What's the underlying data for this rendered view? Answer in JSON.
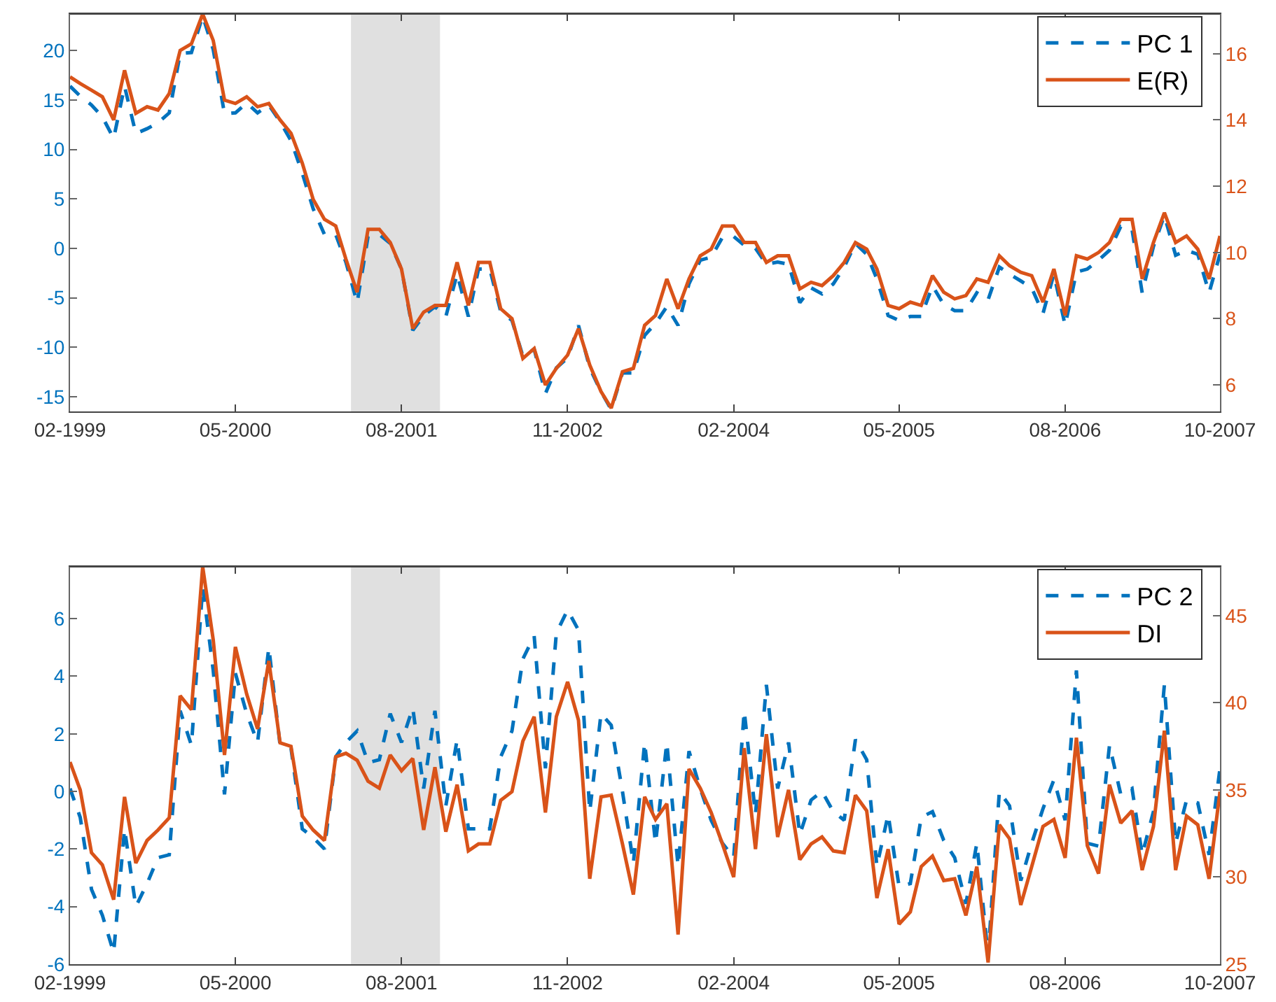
{
  "chart_data": [
    {
      "type": "line",
      "x": [
        "1999-02",
        "1999-03",
        "1999-04",
        "1999-05",
        "1999-06",
        "1999-07",
        "1999-08",
        "1999-09",
        "1999-10",
        "1999-11",
        "1999-12",
        "2000-01",
        "2000-02",
        "2000-03",
        "2000-04",
        "2000-05",
        "2000-06",
        "2000-07",
        "2000-08",
        "2000-09",
        "2000-10",
        "2000-11",
        "2000-12",
        "2001-01",
        "2001-02",
        "2001-03",
        "2001-04",
        "2001-05",
        "2001-06",
        "2001-07",
        "2001-08",
        "2001-09",
        "2001-10",
        "2001-11",
        "2001-12",
        "2002-01",
        "2002-02",
        "2002-03",
        "2002-04",
        "2002-05",
        "2002-06",
        "2002-07",
        "2002-08",
        "2002-09",
        "2002-10",
        "2002-11",
        "2002-12",
        "2003-01",
        "2003-02",
        "2003-03",
        "2003-04",
        "2003-05",
        "2003-06",
        "2003-07",
        "2003-08",
        "2003-09",
        "2003-10",
        "2003-11",
        "2003-12",
        "2004-01",
        "2004-02",
        "2004-03",
        "2004-04",
        "2004-05",
        "2004-06",
        "2004-07",
        "2004-08",
        "2004-09",
        "2004-10",
        "2004-11",
        "2004-12",
        "2005-01",
        "2005-02",
        "2005-03",
        "2005-04",
        "2005-05",
        "2005-06",
        "2005-07",
        "2005-08",
        "2005-09",
        "2005-10",
        "2005-11",
        "2005-12",
        "2006-01",
        "2006-02",
        "2006-03",
        "2006-04",
        "2006-05",
        "2006-06",
        "2006-07",
        "2006-08",
        "2006-09",
        "2006-10",
        "2006-11",
        "2006-12",
        "2007-01",
        "2007-02",
        "2007-03",
        "2007-04",
        "2007-05",
        "2007-06",
        "2007-07",
        "2007-08",
        "2007-09",
        "2007-10"
      ],
      "series": [
        {
          "name": "PC 1",
          "color": "#0072bd",
          "line_style": "dashed",
          "values": [
            16.4,
            15.4,
            14.5,
            13.3,
            11.1,
            16.4,
            11.6,
            12.1,
            12.7,
            13.7,
            19.7,
            19.8,
            23.5,
            20.1,
            13.6,
            13.7,
            14.7,
            13.7,
            14.5,
            12.8,
            10.9,
            7.6,
            4.0,
            1.4,
            1.4,
            -1.4,
            -5.5,
            1.2,
            1.4,
            0.5,
            -2.1,
            -8.3,
            -6.8,
            -5.9,
            -6.9,
            -2.6,
            -6.9,
            -2.1,
            -2.1,
            -6.4,
            -7.3,
            -10.9,
            -10.2,
            -14.7,
            -12.1,
            -11.1,
            -7.8,
            -12.1,
            -14.5,
            -16.3,
            -12.6,
            -12.6,
            -8.8,
            -7.6,
            -5.9,
            -7.8,
            -3.6,
            -1.2,
            -0.9,
            1.1,
            1.2,
            0.3,
            0.0,
            -1.6,
            -1.4,
            -1.6,
            -5.5,
            -4.0,
            -4.6,
            -3.6,
            -1.9,
            0.5,
            -0.6,
            -3.1,
            -6.8,
            -7.3,
            -6.9,
            -6.9,
            -3.8,
            -5.7,
            -6.3,
            -6.3,
            -4.5,
            -5.2,
            -1.9,
            -2.6,
            -3.3,
            -4.0,
            -6.6,
            -2.6,
            -7.8,
            -2.4,
            -2.1,
            -1.2,
            -0.2,
            2.2,
            1.9,
            -4.5,
            0.2,
            3.3,
            -0.7,
            -0.2,
            -0.6,
            -4.5,
            -0.6
          ]
        },
        {
          "name": "E(R)",
          "color": "#d95319",
          "axis": "y2",
          "values": [
            15.3,
            15.1,
            14.9,
            14.7,
            14.0,
            15.5,
            14.2,
            14.4,
            14.3,
            14.8,
            16.1,
            16.3,
            17.2,
            16.4,
            14.6,
            14.5,
            14.7,
            14.4,
            14.5,
            14.0,
            13.6,
            12.7,
            11.6,
            11.0,
            10.8,
            9.8,
            8.8,
            10.7,
            10.7,
            10.3,
            9.5,
            7.7,
            8.2,
            8.4,
            8.4,
            9.7,
            8.4,
            9.7,
            9.7,
            8.3,
            8.0,
            6.8,
            7.1,
            6.0,
            6.5,
            6.9,
            7.7,
            6.6,
            5.8,
            5.3,
            6.4,
            6.5,
            7.8,
            8.1,
            9.2,
            8.3,
            9.2,
            9.9,
            10.1,
            10.8,
            10.8,
            10.3,
            10.3,
            9.7,
            9.9,
            9.9,
            8.9,
            9.1,
            9.0,
            9.3,
            9.7,
            10.3,
            10.1,
            9.5,
            8.4,
            8.3,
            8.5,
            8.4,
            9.3,
            8.8,
            8.6,
            8.7,
            9.2,
            9.1,
            9.9,
            9.6,
            9.4,
            9.3,
            8.5,
            9.5,
            8.1,
            9.9,
            9.8,
            10.0,
            10.3,
            11.0,
            11.0,
            9.2,
            10.3,
            11.2,
            10.3,
            10.5,
            10.1,
            9.2,
            10.5
          ]
        }
      ],
      "xlim": [
        "1999-02",
        "2007-10"
      ],
      "xticks": [
        {
          "value": "1999-02",
          "label": "02-1999"
        },
        {
          "value": "2000-05",
          "label": "05-2000"
        },
        {
          "value": "2001-08",
          "label": "08-2001"
        },
        {
          "value": "2002-11",
          "label": "11-2002"
        },
        {
          "value": "2004-02",
          "label": "02-2004"
        },
        {
          "value": "2005-05",
          "label": "05-2005"
        },
        {
          "value": "2006-08",
          "label": "08-2006"
        },
        {
          "value": "2007-10",
          "label": "10-2007"
        }
      ],
      "ylim": [
        -16.5,
        23.7
      ],
      "yticks": [
        -15,
        -10,
        -5,
        0,
        5,
        10,
        15,
        20
      ],
      "y2lim": [
        5.2,
        17.2
      ],
      "y2ticks": [
        6,
        8,
        10,
        12,
        14,
        16
      ],
      "bands": [
        {
          "axis": "x",
          "from": "2001-03-15",
          "to": "2001-11-15",
          "color": "#e0e0e0"
        }
      ],
      "legend": "top right"
    },
    {
      "type": "line",
      "x": [
        "1999-02",
        "1999-03",
        "1999-04",
        "1999-05",
        "1999-06",
        "1999-07",
        "1999-08",
        "1999-09",
        "1999-10",
        "1999-11",
        "1999-12",
        "2000-01",
        "2000-02",
        "2000-03",
        "2000-04",
        "2000-05",
        "2000-06",
        "2000-07",
        "2000-08",
        "2000-09",
        "2000-10",
        "2000-11",
        "2000-12",
        "2001-01",
        "2001-02",
        "2001-03",
        "2001-04",
        "2001-05",
        "2001-06",
        "2001-07",
        "2001-08",
        "2001-09",
        "2001-10",
        "2001-11",
        "2001-12",
        "2002-01",
        "2002-02",
        "2002-03",
        "2002-04",
        "2002-05",
        "2002-06",
        "2002-07",
        "2002-08",
        "2002-09",
        "2002-10",
        "2002-11",
        "2002-12",
        "2003-01",
        "2003-02",
        "2003-03",
        "2003-04",
        "2003-05",
        "2003-06",
        "2003-07",
        "2003-08",
        "2003-09",
        "2003-10",
        "2003-11",
        "2003-12",
        "2004-01",
        "2004-02",
        "2004-03",
        "2004-04",
        "2004-05",
        "2004-06",
        "2004-07",
        "2004-08",
        "2004-09",
        "2004-10",
        "2004-11",
        "2004-12",
        "2005-01",
        "2005-02",
        "2005-03",
        "2005-04",
        "2005-05",
        "2005-06",
        "2005-07",
        "2005-08",
        "2005-09",
        "2005-10",
        "2005-11",
        "2005-12",
        "2006-01",
        "2006-02",
        "2006-03",
        "2006-04",
        "2006-05",
        "2006-06",
        "2006-07",
        "2006-08",
        "2006-09",
        "2006-10",
        "2006-11",
        "2006-12",
        "2007-01",
        "2007-02",
        "2007-03",
        "2007-04",
        "2007-05",
        "2007-06",
        "2007-07",
        "2007-08",
        "2007-09",
        "2007-10"
      ],
      "series": [
        {
          "name": "PC 2",
          "color": "#0072bd",
          "line_style": "dashed",
          "values": [
            0.1,
            -0.9,
            -3.4,
            -4.3,
            -5.6,
            -1.3,
            -4.0,
            -3.2,
            -2.3,
            -2.2,
            2.8,
            1.6,
            7.1,
            4.2,
            -0.1,
            4.1,
            2.7,
            1.7,
            5.0,
            1.6,
            1.5,
            -1.3,
            -1.6,
            -2.0,
            1.2,
            1.7,
            2.1,
            1.0,
            1.1,
            2.7,
            1.7,
            2.9,
            0.1,
            2.8,
            -0.5,
            1.8,
            -1.3,
            -1.3,
            -1.3,
            1.2,
            2.1,
            4.6,
            5.4,
            0.8,
            5.5,
            6.3,
            5.6,
            -0.7,
            2.7,
            2.3,
            0.0,
            -2.5,
            1.7,
            -1.8,
            1.7,
            -2.6,
            1.4,
            0.1,
            -1.0,
            -1.8,
            -2.3,
            2.8,
            -0.8,
            3.7,
            0.1,
            1.7,
            -1.5,
            -0.3,
            0.0,
            -0.7,
            -1.0,
            1.8,
            1.1,
            -2.6,
            -0.8,
            -3.3,
            -3.2,
            -0.9,
            -0.7,
            -1.7,
            -2.3,
            -3.9,
            -1.8,
            -5.7,
            0.0,
            -0.5,
            -3.1,
            -1.8,
            -0.6,
            0.4,
            -1.0,
            4.2,
            -1.8,
            -1.9,
            1.6,
            -0.1,
            0.1,
            -2.2,
            -0.7,
            3.7,
            -1.8,
            -0.3,
            -0.4,
            -2.2,
            0.8
          ]
        },
        {
          "name": "DI",
          "color": "#d95319",
          "axis": "y2",
          "values": [
            36.6,
            35.0,
            31.4,
            30.7,
            28.7,
            34.6,
            30.8,
            32.1,
            32.7,
            33.4,
            40.4,
            39.6,
            47.8,
            43.6,
            37.0,
            43.2,
            40.5,
            38.5,
            42.4,
            37.7,
            37.5,
            33.5,
            32.7,
            32.1,
            36.9,
            37.1,
            36.7,
            35.5,
            35.1,
            37.0,
            36.1,
            36.8,
            32.7,
            36.3,
            32.6,
            35.3,
            31.5,
            31.9,
            31.9,
            34.4,
            34.9,
            37.8,
            39.2,
            33.7,
            39.2,
            41.2,
            39.0,
            29.9,
            34.6,
            34.7,
            31.9,
            29.0,
            34.6,
            33.3,
            34.2,
            26.7,
            36.2,
            35.1,
            33.7,
            31.9,
            30.0,
            37.4,
            31.6,
            38.2,
            32.3,
            35.0,
            31.0,
            31.9,
            32.3,
            31.5,
            31.4,
            34.7,
            33.8,
            28.8,
            31.6,
            27.3,
            28.0,
            30.6,
            31.2,
            29.8,
            29.9,
            27.8,
            30.6,
            25.1,
            33.0,
            32.2,
            28.4,
            30.6,
            32.9,
            33.3,
            31.1,
            38.0,
            31.8,
            30.2,
            35.3,
            33.1,
            33.8,
            30.4,
            32.9,
            38.4,
            30.4,
            33.5,
            33.0,
            29.9,
            34.9
          ]
        }
      ],
      "xlim": [
        "1999-02",
        "2007-10"
      ],
      "xticks": [
        {
          "value": "1999-02",
          "label": "02-1999"
        },
        {
          "value": "2000-05",
          "label": "05-2000"
        },
        {
          "value": "2001-08",
          "label": "08-2001"
        },
        {
          "value": "2002-11",
          "label": "11-2002"
        },
        {
          "value": "2004-02",
          "label": "02-2004"
        },
        {
          "value": "2005-05",
          "label": "05-2005"
        },
        {
          "value": "2006-08",
          "label": "08-2006"
        },
        {
          "value": "2007-10",
          "label": "10-2007"
        }
      ],
      "ylim": [
        -6,
        7.8
      ],
      "yticks": [
        -6,
        -4,
        -2,
        0,
        2,
        4,
        6
      ],
      "y2lim": [
        25,
        47.8
      ],
      "y2ticks": [
        25,
        30,
        35,
        40,
        45
      ],
      "bands": [
        {
          "axis": "x",
          "from": "2001-03-15",
          "to": "2001-11-15",
          "color": "#e0e0e0"
        }
      ],
      "legend": "top right"
    }
  ]
}
